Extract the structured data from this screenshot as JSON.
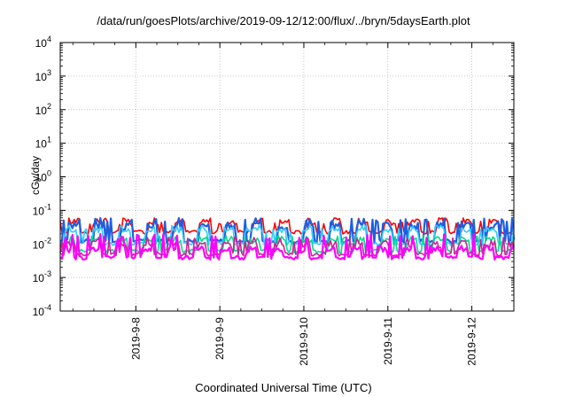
{
  "chart_data": {
    "type": "line",
    "title": "/data/run/goesPlots/archive/2019-09-12/12:00/flux/../bryn/5daysEarth.plot",
    "xlabel": "Coordinated Universal Time (UTC)",
    "ylabel": "cGy/day",
    "yscale": "log",
    "ylim": [
      0.0001,
      10000
    ],
    "y_ticks": [
      {
        "base": "10",
        "exp": "-4"
      },
      {
        "base": "10",
        "exp": "-3"
      },
      {
        "base": "10",
        "exp": "-2"
      },
      {
        "base": "10",
        "exp": "-1"
      },
      {
        "base": "10",
        "exp": "0"
      },
      {
        "base": "10",
        "exp": "1"
      },
      {
        "base": "10",
        "exp": "2"
      },
      {
        "base": "10",
        "exp": "3"
      },
      {
        "base": "10",
        "exp": "4"
      }
    ],
    "x_ticks": [
      "2019-9-8",
      "2019-9-9",
      "2019-9-10",
      "2019-9-11",
      "2019-9-12"
    ],
    "xlim_days": [
      7.1,
      12.5
    ],
    "grid": true,
    "series": [
      {
        "color": "#ff0000",
        "base": 0.03,
        "dip": 0.022,
        "spike": 0.048
      },
      {
        "color": "#1f5fe0",
        "base": 0.022,
        "dip": 0.012,
        "spike": 0.06
      },
      {
        "color": "#33ccff",
        "base": 0.018,
        "dip": 0.01,
        "spike": 0.03
      },
      {
        "color": "#00dd88",
        "base": 0.0085,
        "dip": 0.006,
        "spike": 0.018
      },
      {
        "color": "#cc2299",
        "base": 0.0062,
        "dip": 0.0048,
        "spike": 0.016
      },
      {
        "color": "#ff00ff",
        "base": 0.0045,
        "dip": 0.0038,
        "spike": 0.02
      }
    ]
  }
}
